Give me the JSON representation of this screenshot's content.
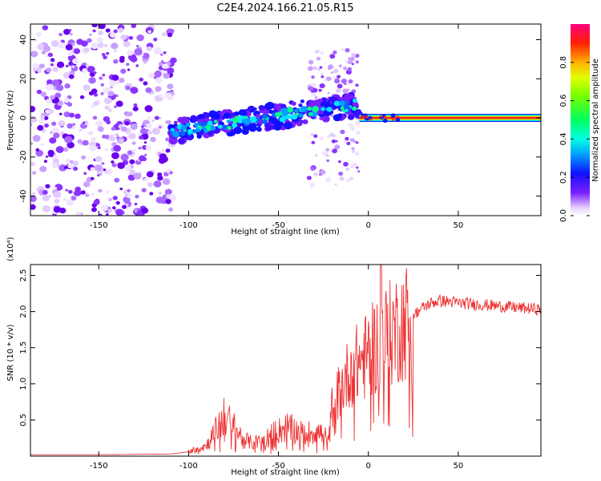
{
  "title": "C2E4.2024.166.21.05.R15",
  "chart_data": [
    {
      "type": "heatmap",
      "xlabel": "Height of straight line (km)",
      "ylabel": "Frequency (Hz)",
      "xlim": [
        -188,
        96
      ],
      "ylim": [
        -50,
        48
      ],
      "xticks": [
        -150,
        -100,
        -50,
        0,
        50
      ],
      "yticks": [
        -40,
        -20,
        0,
        20,
        40
      ],
      "colorbar": {
        "label": "Normalized spectral amplitude",
        "range": [
          0.0,
          1.0
        ],
        "ticks": [
          0.0,
          0.2,
          0.4,
          0.6,
          0.8
        ],
        "colormap": "rainbow"
      },
      "regions": [
        {
          "name": "diffuse noise",
          "x": [
            -188,
            -108
          ],
          "freq": [
            -50,
            48
          ],
          "amplitude": 0.15
        },
        {
          "name": "sloped trace",
          "x": [
            -110,
            -5
          ],
          "freq_start": -7,
          "freq_end": 7,
          "amplitude": 0.35
        },
        {
          "name": "broad burst",
          "x": [
            -33,
            -5
          ],
          "freq": [
            -35,
            35
          ],
          "amplitude": 0.1
        },
        {
          "name": "carrier line",
          "x": [
            -5,
            96
          ],
          "freq": 0,
          "amplitude": 0.9
        }
      ]
    },
    {
      "type": "line",
      "xlabel": "Height of straight line (km)",
      "ylabel": "SNR (10 * v/v)",
      "y_multiplier": "(x10⁴)",
      "xlim": [
        -188,
        96
      ],
      "ylim": [
        0,
        2.65
      ],
      "xticks": [
        -150,
        -100,
        -50,
        0,
        50
      ],
      "yticks": [
        0.5,
        1.0,
        1.5,
        2.0,
        2.5
      ],
      "color": "#ee3333",
      "series": [
        {
          "x": [
            -188,
            -150,
            -110,
            -100,
            -90,
            -85,
            -80,
            -75,
            -70,
            -65,
            -60,
            -55,
            -50,
            -45,
            -40,
            -35,
            -30,
            -25,
            -22,
            -20,
            -15,
            -10,
            -5,
            0,
            5,
            10,
            15,
            20,
            25,
            30,
            35,
            40,
            50,
            60,
            70,
            80,
            90,
            96
          ],
          "values": [
            0.02,
            0.02,
            0.03,
            0.06,
            0.15,
            0.35,
            0.55,
            0.4,
            0.25,
            0.18,
            0.2,
            0.28,
            0.35,
            0.4,
            0.35,
            0.3,
            0.35,
            0.3,
            0.2,
            0.7,
            0.95,
            1.2,
            1.3,
            1.4,
            1.55,
            1.65,
            1.75,
            1.85,
            1.95,
            2.05,
            2.12,
            2.15,
            2.12,
            2.1,
            2.08,
            2.06,
            2.04,
            2.03
          ]
        }
      ]
    }
  ]
}
